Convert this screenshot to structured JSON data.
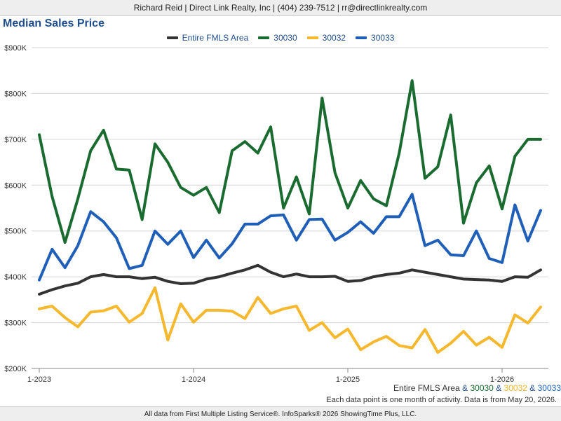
{
  "header": {
    "contact": "Richard Reid | Direct Link Realty, Inc | (404) 239-7512 | rr@directlinkrealty.com"
  },
  "footer": {
    "areas": [
      {
        "label": "Entire FMLS Area",
        "color": "#333333"
      },
      {
        "label": "30030",
        "color": "#1a6b2f"
      },
      {
        "label": "30032",
        "color": "#f5b82e"
      },
      {
        "label": "30033",
        "color": "#1f5fb8"
      }
    ],
    "separator": "&",
    "note": "Each data point is one month of activity. Data is from May 20, 2026.",
    "source": "All data from First Multiple Listing Service®. InfoSparks® 2026 ShowingTime Plus, LLC."
  },
  "chart_data": {
    "type": "line",
    "title": "Median Sales Price",
    "x": [
      "2023-01",
      "2023-02",
      "2023-03",
      "2023-04",
      "2023-05",
      "2023-06",
      "2023-07",
      "2023-08",
      "2023-09",
      "2023-10",
      "2023-11",
      "2023-12",
      "2024-01",
      "2024-02",
      "2024-03",
      "2024-04",
      "2024-05",
      "2024-06",
      "2024-07",
      "2024-08",
      "2024-09",
      "2024-10",
      "2024-11",
      "2024-12",
      "2025-01",
      "2025-02",
      "2025-03",
      "2025-04",
      "2025-05",
      "2025-06",
      "2025-07",
      "2025-08",
      "2025-09",
      "2025-10",
      "2025-11",
      "2025-12",
      "2026-01",
      "2026-02",
      "2026-03",
      "2026-04"
    ],
    "x_ticks": [
      "1-2023",
      "1-2024",
      "1-2025",
      "1-2026"
    ],
    "y_ticks": [
      "$200K",
      "$300K",
      "$400K",
      "$500K",
      "$600K",
      "$700K",
      "$800K",
      "$900K"
    ],
    "ylim": [
      200000,
      900000
    ],
    "grid": true,
    "legend_position": "top",
    "series": [
      {
        "name": "Entire FMLS Area",
        "color": "#333333",
        "values": [
          362000,
          372000,
          380000,
          386000,
          400000,
          405000,
          400000,
          400000,
          396000,
          399000,
          390000,
          385000,
          386000,
          395000,
          400000,
          408000,
          415000,
          425000,
          410000,
          400000,
          406000,
          400000,
          400000,
          401000,
          390000,
          392000,
          400000,
          405000,
          408000,
          415000,
          410000,
          405000,
          400000,
          395000,
          394000,
          393000,
          390000,
          400000,
          399000,
          415000
        ]
      },
      {
        "name": "30030",
        "color": "#1a6b2f",
        "values": [
          710000,
          575000,
          475000,
          570000,
          675000,
          720000,
          635000,
          633000,
          525000,
          690000,
          650000,
          595000,
          578000,
          595000,
          540000,
          675000,
          695000,
          670000,
          727000,
          550000,
          618000,
          537000,
          790000,
          627000,
          550000,
          610000,
          570000,
          555000,
          670000,
          828000,
          615000,
          640000,
          753000,
          517000,
          605000,
          642000,
          548000,
          663000,
          700000,
          700000
        ]
      },
      {
        "name": "30032",
        "color": "#f5b82e",
        "values": [
          330000,
          336000,
          311000,
          291000,
          323000,
          326000,
          336000,
          301000,
          320000,
          376000,
          262000,
          341000,
          301000,
          327000,
          327000,
          325000,
          309000,
          355000,
          320000,
          330000,
          336000,
          283000,
          300000,
          267000,
          286000,
          241000,
          258000,
          270000,
          250000,
          245000,
          285000,
          235000,
          255000,
          281000,
          251000,
          268000,
          246000,
          317000,
          299000,
          334000
        ]
      },
      {
        "name": "30033",
        "color": "#1f5fb8",
        "values": [
          393000,
          460000,
          420000,
          468000,
          542000,
          520000,
          485000,
          418000,
          425000,
          500000,
          471000,
          500000,
          442000,
          480000,
          441000,
          472000,
          515000,
          515000,
          533000,
          535000,
          480000,
          525000,
          526000,
          480000,
          497000,
          520000,
          495000,
          531000,
          531000,
          580000,
          468000,
          480000,
          448000,
          446000,
          500000,
          440000,
          431000,
          557000,
          478000,
          545000
        ]
      }
    ]
  }
}
